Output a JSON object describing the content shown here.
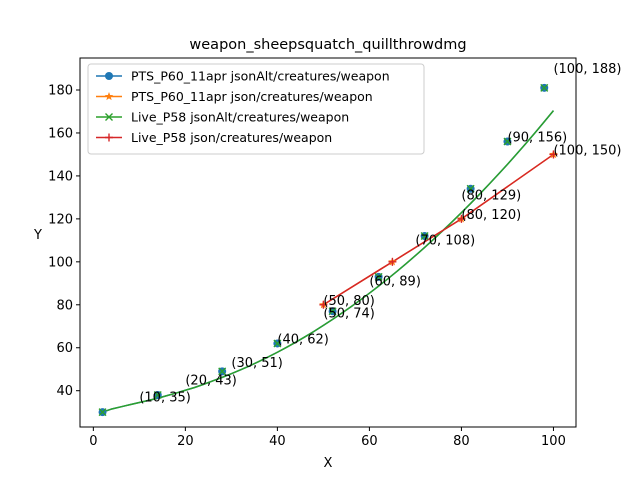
{
  "chart_data": {
    "type": "line",
    "title": "weapon_sheepsquatch_quillthrowdmg",
    "xlabel": "X",
    "ylabel": "Y",
    "xlim": [
      -2.9,
      104.9
    ],
    "ylim": [
      23.1,
      194.9
    ],
    "xticks": [
      0,
      20,
      40,
      60,
      80,
      100
    ],
    "yticks": [
      40,
      60,
      80,
      100,
      120,
      140,
      160,
      180
    ],
    "legend_position": "upper-left",
    "series": [
      {
        "name": "PTS_P60_11apr jsonAlt/creatures/weapon",
        "color": "#1f77b4",
        "marker": "circle",
        "x": [
          2,
          4,
          6,
          8,
          10,
          12,
          14,
          16,
          18,
          20,
          22,
          24,
          26,
          28,
          30,
          32,
          34,
          36,
          38,
          40,
          42,
          44,
          46,
          48,
          50,
          52,
          54,
          56,
          58,
          60,
          62,
          64,
          66,
          68,
          70,
          72,
          74,
          76,
          78,
          80,
          82,
          84,
          86,
          88,
          90,
          92,
          94,
          96,
          98,
          100
        ],
        "y": [
          30,
          31.5,
          32.5,
          33.5,
          34.5,
          35.5,
          36.5,
          37.7,
          38.9,
          40.2,
          41.5,
          43,
          44.6,
          46.2,
          47.9,
          49.7,
          51.6,
          53.6,
          55.7,
          57.9,
          60.2,
          62.6,
          65.1,
          67.7,
          70.4,
          73.2,
          76.1,
          79.1,
          82.2,
          85.4,
          88.7,
          92.1,
          95.6,
          99.2,
          102.9,
          106.7,
          110.6,
          114.6,
          118.7,
          122.9,
          127.2,
          131.6,
          136.1,
          140.7,
          145.4,
          150.2,
          155.1,
          160.1,
          165.2,
          170.4
        ]
      },
      {
        "name": "PTS_P60_11apr json/creatures/weapon",
        "color": "#ff7f0e",
        "marker": "star",
        "x": [
          50,
          65,
          80,
          100
        ],
        "y": [
          80,
          100,
          120,
          150
        ]
      },
      {
        "name": "Live_P58 jsonAlt/creatures/weapon",
        "color": "#2ca02c",
        "marker": "x",
        "x": [
          2,
          4,
          6,
          8,
          10,
          12,
          14,
          16,
          18,
          20,
          22,
          24,
          26,
          28,
          30,
          32,
          34,
          36,
          38,
          40,
          42,
          44,
          46,
          48,
          50,
          52,
          54,
          56,
          58,
          60,
          62,
          64,
          66,
          68,
          70,
          72,
          74,
          76,
          78,
          80,
          82,
          84,
          86,
          88,
          90,
          92,
          94,
          96,
          98,
          100
        ],
        "y": [
          30,
          31.5,
          32.5,
          33.5,
          34.5,
          35.5,
          36.5,
          37.7,
          38.9,
          40.2,
          41.5,
          43,
          44.6,
          46.2,
          47.9,
          49.7,
          51.6,
          53.6,
          55.7,
          57.9,
          60.2,
          62.6,
          65.1,
          67.7,
          70.4,
          73.2,
          76.1,
          79.1,
          82.2,
          85.4,
          88.7,
          92.1,
          95.6,
          99.2,
          102.9,
          106.7,
          110.6,
          114.6,
          118.7,
          122.9,
          127.2,
          131.6,
          136.1,
          140.7,
          145.4,
          150.2,
          155.1,
          160.1,
          165.2,
          170.4
        ]
      },
      {
        "name": "Live_P58 json/creatures/weapon",
        "color": "#d62728",
        "marker": "plus",
        "x": [
          50,
          65,
          80,
          100
        ],
        "y": [
          80,
          100,
          120,
          150
        ]
      }
    ],
    "markers_green_blue": {
      "x": [
        2,
        14,
        28,
        40,
        52,
        62,
        72,
        82,
        90,
        98
      ],
      "y": [
        30,
        38,
        49,
        62,
        77,
        93,
        112,
        134,
        156,
        181
      ]
    },
    "annotations": [
      {
        "x": 10,
        "y": 35,
        "text": "(10, 35)"
      },
      {
        "x": 20,
        "y": 43,
        "text": "(20, 43)"
      },
      {
        "x": 30,
        "y": 51,
        "text": "(30, 51)"
      },
      {
        "x": 40,
        "y": 62,
        "text": "(40, 62)"
      },
      {
        "x": 50,
        "y": 74,
        "text": "(50, 74)"
      },
      {
        "x": 50,
        "y": 80,
        "text": "(50, 80)"
      },
      {
        "x": 60,
        "y": 89,
        "text": "(60, 89)"
      },
      {
        "x": 70,
        "y": 108,
        "text": "(70, 108)"
      },
      {
        "x": 80,
        "y": 120,
        "text": "(80, 120)"
      },
      {
        "x": 80,
        "y": 129,
        "text": "(80, 129)"
      },
      {
        "x": 90,
        "y": 156,
        "text": "(90, 156)"
      },
      {
        "x": 100,
        "y": 150,
        "text": "(100, 150)"
      },
      {
        "x": 100,
        "y": 188,
        "text": "(100, 188)"
      }
    ]
  }
}
